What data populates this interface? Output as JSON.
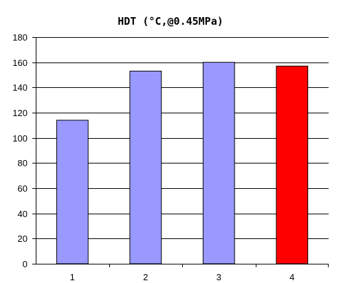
{
  "chart_data": {
    "type": "bar",
    "title": "HDT (°C,@0.45MPa)",
    "xlabel": "",
    "ylabel": "",
    "categories": [
      "1",
      "2",
      "3",
      "4"
    ],
    "values": [
      114,
      153,
      160,
      157
    ],
    "ylim": [
      0,
      180
    ],
    "y_ticks": [
      0,
      20,
      40,
      60,
      80,
      100,
      120,
      140,
      160,
      180
    ],
    "grid": "horizontal",
    "colors": {
      "bar": "#9999ff",
      "highlight_bar": "#ff0000",
      "axis": "#000000",
      "gridline": "#000000"
    },
    "highlight_index": 3
  }
}
